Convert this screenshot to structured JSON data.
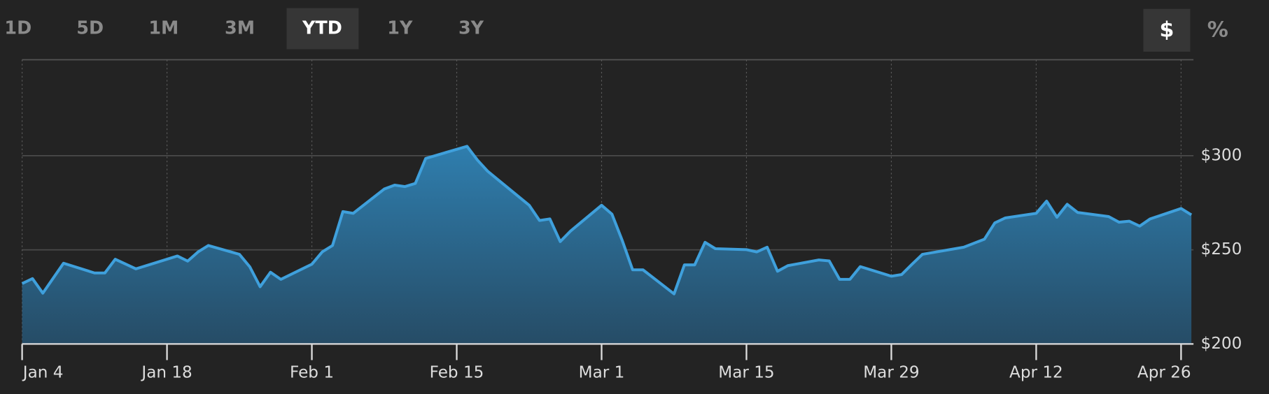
{
  "toolbar": {
    "ranges": [
      "1D",
      "5D",
      "1M",
      "3M",
      "YTD",
      "1Y",
      "3Y"
    ],
    "selected_range": 4,
    "modes": [
      "$",
      "%"
    ],
    "selected_mode": 0
  },
  "chart_data": {
    "type": "area",
    "x": [
      4,
      5,
      6,
      8,
      11,
      12,
      13,
      15,
      19,
      20,
      21,
      22,
      25,
      26,
      27,
      28,
      29,
      32,
      33,
      34,
      35,
      36,
      39,
      40,
      41,
      42,
      43,
      47,
      48,
      49,
      53,
      54,
      55,
      56,
      57,
      60,
      61,
      62,
      63,
      64,
      67,
      68,
      69,
      70,
      71,
      74,
      75,
      76,
      77,
      78,
      81,
      82,
      83,
      84,
      85,
      88,
      89,
      90,
      91,
      95,
      97,
      98,
      99,
      102,
      103,
      104,
      105,
      106,
      109,
      110,
      111,
      112,
      113,
      116,
      117
    ],
    "series": [
      {
        "color": "#3fa0dc",
        "values": [
          232.1,
          234.7,
          227,
          242.9,
          237.7,
          237.7,
          245,
          239.9,
          246.7,
          244,
          248.9,
          252.3,
          247.6,
          241,
          230.4,
          238.1,
          234.3,
          242.4,
          248.9,
          252.3,
          270.3,
          269.4,
          282.3,
          284.4,
          283.6,
          285.3,
          298.6,
          305,
          297.7,
          291.7,
          273.7,
          265.6,
          266.4,
          254.4,
          260,
          273.7,
          269,
          254.9,
          239.4,
          239.4,
          226.6,
          242,
          242,
          254,
          250.6,
          250.1,
          248.9,
          251.4,
          238.6,
          241.6,
          244.6,
          244.1,
          234.3,
          234.3,
          241.1,
          236,
          236.9,
          242.4,
          247.6,
          251.4,
          255.7,
          264.3,
          266.9,
          269.4,
          275.9,
          267.3,
          274.2,
          269.9,
          267.7,
          264.7,
          265.2,
          262.6,
          266.4,
          272,
          268.6
        ]
      }
    ],
    "xlim": [
      4,
      117.2
    ],
    "xticks": [
      {
        "value": 4,
        "label": "Jan 4"
      },
      {
        "value": 18,
        "label": "Jan 18"
      },
      {
        "value": 32,
        "label": "Feb 1"
      },
      {
        "value": 46,
        "label": "Feb 15"
      },
      {
        "value": 60,
        "label": "Mar 1"
      },
      {
        "value": 74,
        "label": "Mar 15"
      },
      {
        "value": 88,
        "label": "Mar 29"
      },
      {
        "value": 102,
        "label": "Apr 12"
      },
      {
        "value": 116,
        "label": "Apr 26"
      }
    ],
    "ylim": [
      200,
      351
    ],
    "yticks": [
      {
        "value": 200,
        "label": "$200"
      },
      {
        "value": 250,
        "label": "$250"
      },
      {
        "value": 300,
        "label": "$300"
      }
    ],
    "grid": true
  }
}
